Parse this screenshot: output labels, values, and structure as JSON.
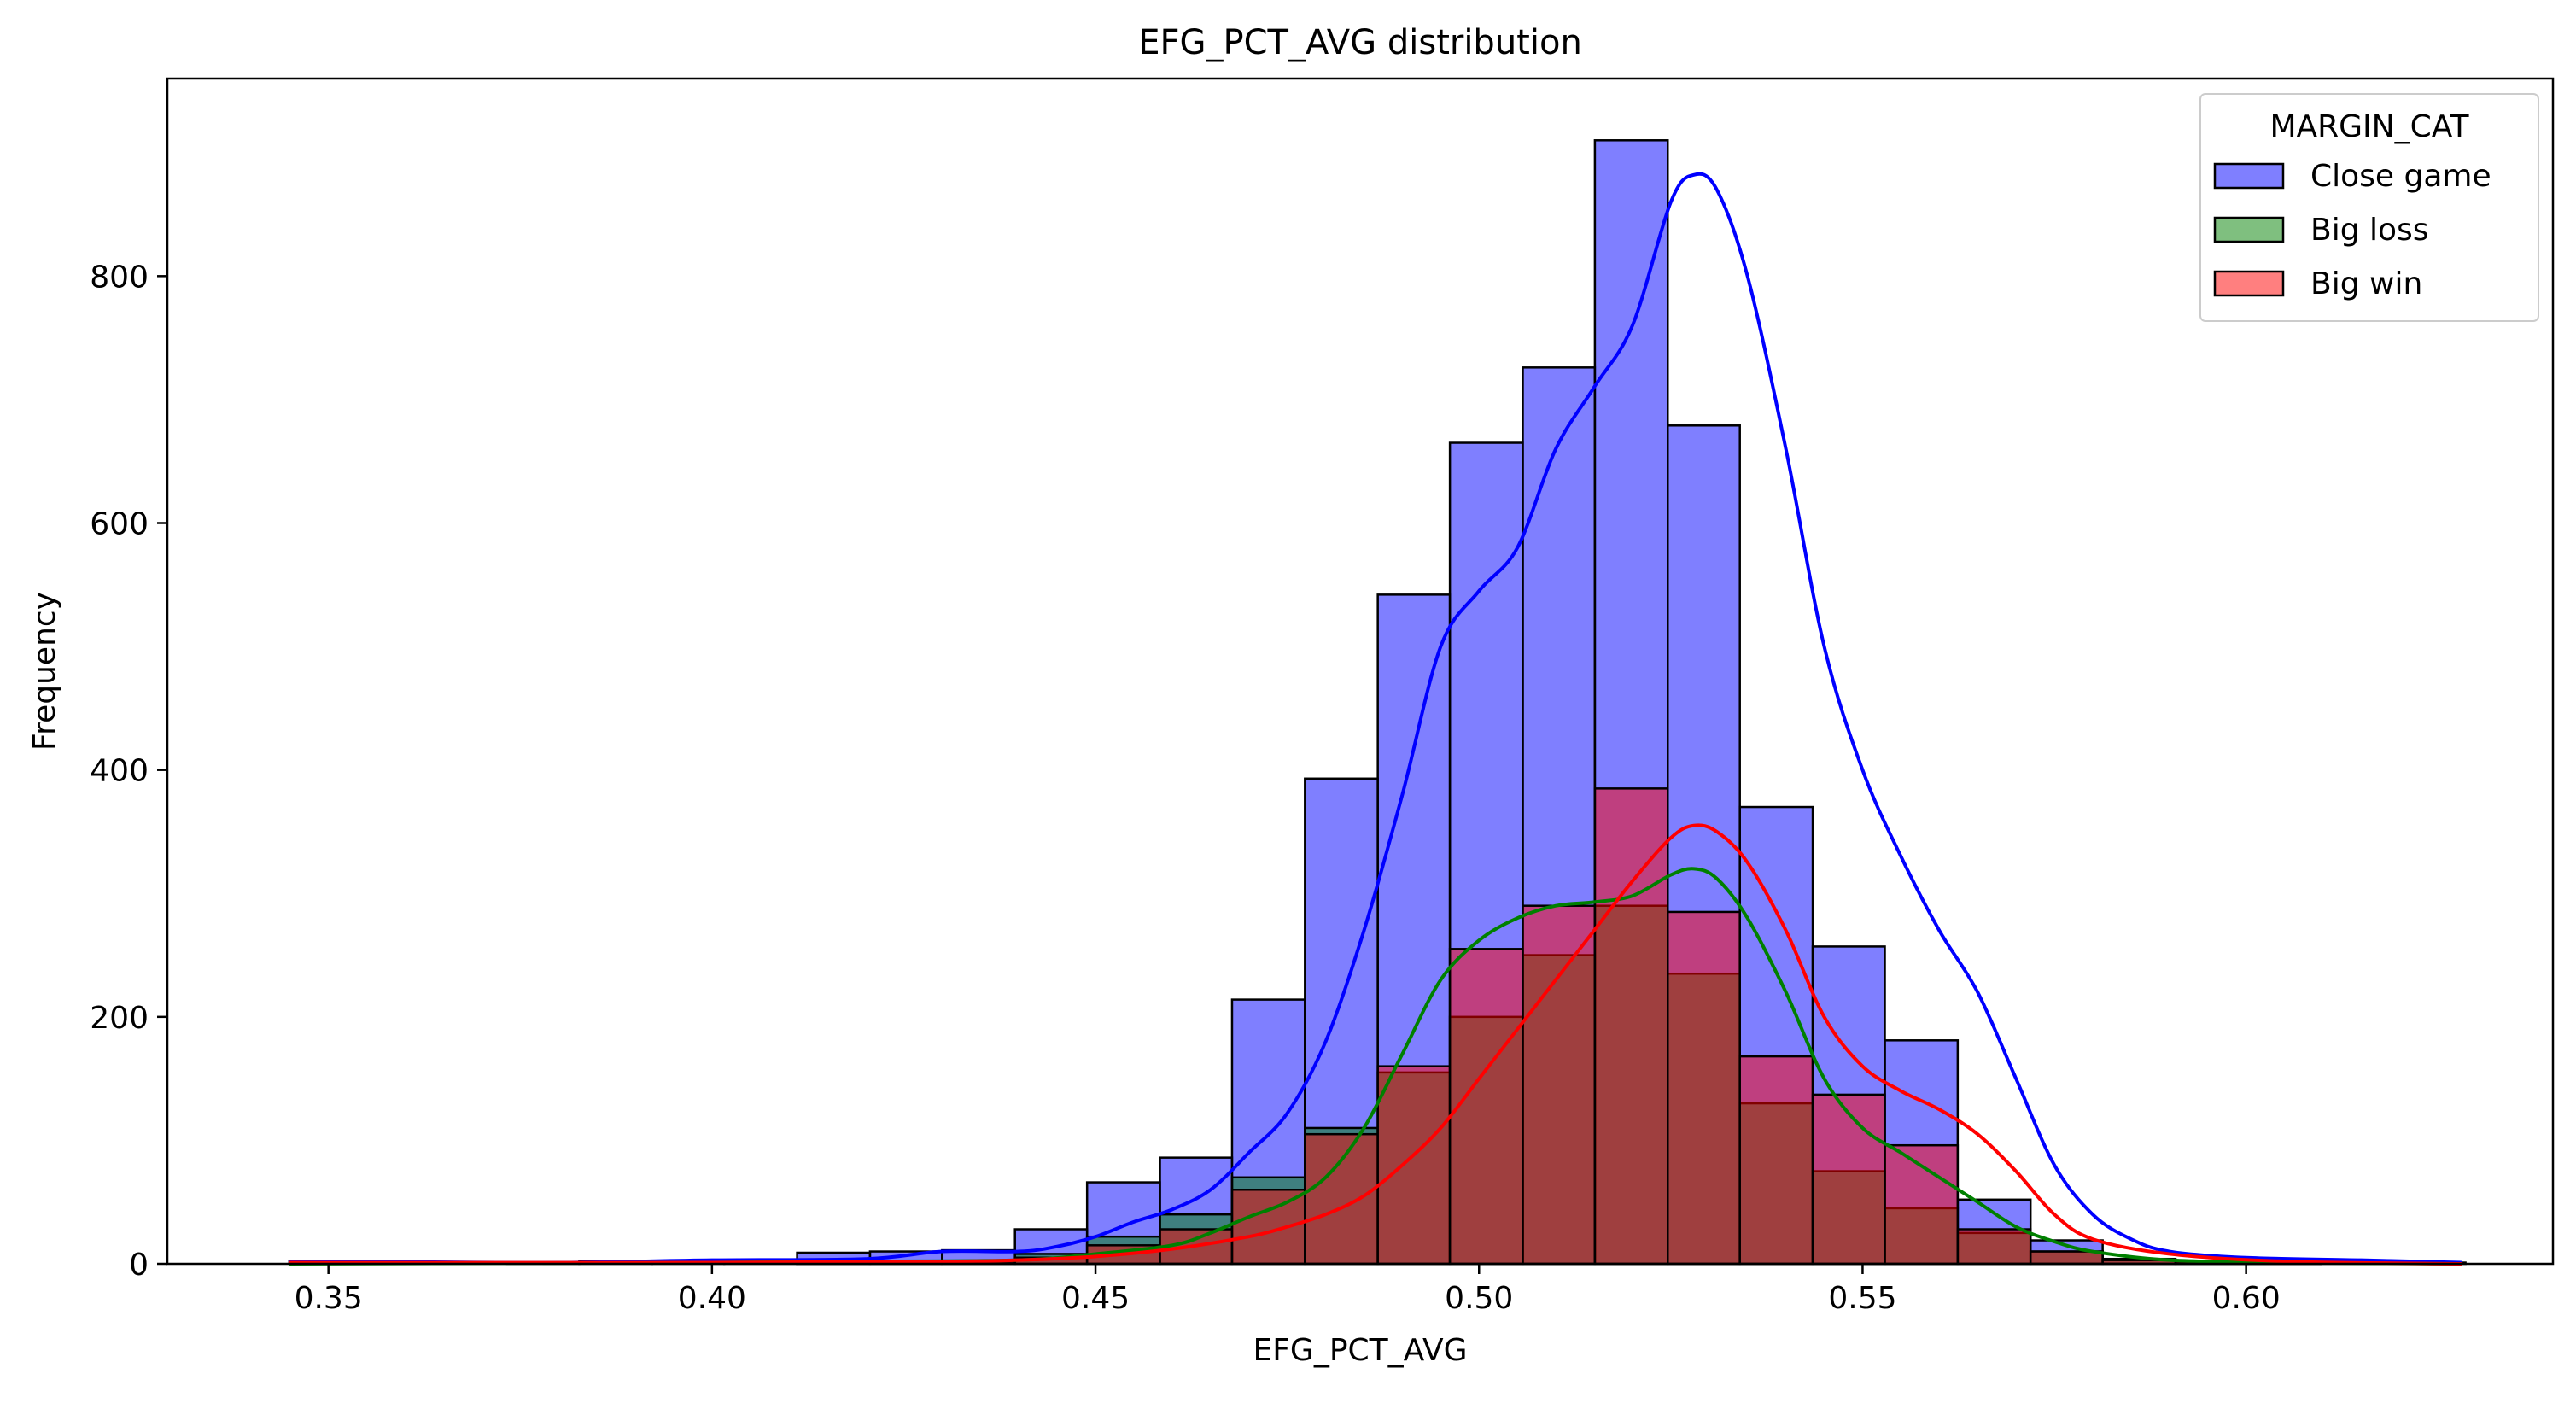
{
  "chart_data": {
    "type": "histogram",
    "title": "EFG_PCT_AVG distribution",
    "xlabel": "EFG_PCT_AVG",
    "ylabel": "Frequency",
    "xlim": [
      0.329,
      0.64
    ],
    "ylim": [
      0,
      960
    ],
    "x_ticks": [
      0.35,
      0.4,
      0.45,
      0.5,
      0.55,
      0.6
    ],
    "x_tick_labels": [
      "0.35",
      "0.40",
      "0.45",
      "0.50",
      "0.55",
      "0.60"
    ],
    "y_ticks": [
      0,
      200,
      400,
      600,
      800
    ],
    "y_tick_labels": [
      "0",
      "200",
      "400",
      "600",
      "800"
    ],
    "grid": false,
    "legend": {
      "title": "MARGIN_CAT",
      "placement": "top-right"
    },
    "bin_edges": [
      0.3449,
      0.3544,
      0.3638,
      0.3733,
      0.3827,
      0.3922,
      0.4016,
      0.4111,
      0.4206,
      0.43,
      0.4395,
      0.4489,
      0.4584,
      0.4678,
      0.4773,
      0.4868,
      0.4962,
      0.5057,
      0.5151,
      0.5246,
      0.534,
      0.5435,
      0.5529,
      0.5624,
      0.5719,
      0.5813,
      0.5908,
      0.6002,
      0.6097,
      0.6191,
      0.6286
    ],
    "series": [
      {
        "name": "Close game",
        "color": "#0000ff",
        "values": [
          2,
          1,
          0,
          1,
          2,
          2,
          3,
          9,
          10,
          11,
          28,
          66,
          86,
          214,
          393,
          542,
          665,
          726,
          910,
          679,
          370,
          257,
          181,
          52,
          19,
          3,
          2,
          1,
          1,
          1
        ],
        "kde": [
          [
            0.345,
            2
          ],
          [
            0.36,
            1.5
          ],
          [
            0.38,
            1
          ],
          [
            0.4,
            3
          ],
          [
            0.42,
            4
          ],
          [
            0.43,
            10
          ],
          [
            0.44,
            10
          ],
          [
            0.445,
            14
          ],
          [
            0.45,
            22
          ],
          [
            0.455,
            34
          ],
          [
            0.46,
            44
          ],
          [
            0.465,
            60
          ],
          [
            0.47,
            90
          ],
          [
            0.475,
            122
          ],
          [
            0.48,
            180
          ],
          [
            0.485,
            270
          ],
          [
            0.49,
            380
          ],
          [
            0.495,
            500
          ],
          [
            0.5,
            545
          ],
          [
            0.505,
            580
          ],
          [
            0.51,
            660
          ],
          [
            0.515,
            710
          ],
          [
            0.52,
            760
          ],
          [
            0.525,
            860
          ],
          [
            0.528,
            882
          ],
          [
            0.531,
            870
          ],
          [
            0.535,
            800
          ],
          [
            0.54,
            660
          ],
          [
            0.545,
            500
          ],
          [
            0.55,
            400
          ],
          [
            0.555,
            330
          ],
          [
            0.56,
            270
          ],
          [
            0.565,
            220
          ],
          [
            0.57,
            150
          ],
          [
            0.575,
            80
          ],
          [
            0.58,
            40
          ],
          [
            0.585,
            20
          ],
          [
            0.59,
            10
          ],
          [
            0.6,
            5
          ],
          [
            0.615,
            3
          ],
          [
            0.628,
            1
          ]
        ]
      },
      {
        "name": "Big loss",
        "color": "#008000",
        "values": [
          0,
          0,
          0,
          0,
          0,
          0,
          0,
          1,
          1,
          2,
          8,
          22,
          40,
          70,
          110,
          155,
          200,
          250,
          290,
          235,
          130,
          75,
          45,
          25,
          10,
          4,
          2,
          1,
          0,
          0
        ],
        "kde": [
          [
            0.345,
            0
          ],
          [
            0.4,
            1
          ],
          [
            0.42,
            2
          ],
          [
            0.44,
            3
          ],
          [
            0.45,
            8
          ],
          [
            0.46,
            15
          ],
          [
            0.465,
            25
          ],
          [
            0.47,
            38
          ],
          [
            0.475,
            50
          ],
          [
            0.48,
            70
          ],
          [
            0.485,
            110
          ],
          [
            0.49,
            170
          ],
          [
            0.495,
            230
          ],
          [
            0.5,
            262
          ],
          [
            0.505,
            280
          ],
          [
            0.51,
            290
          ],
          [
            0.515,
            293
          ],
          [
            0.52,
            298
          ],
          [
            0.525,
            315
          ],
          [
            0.528,
            320
          ],
          [
            0.531,
            312
          ],
          [
            0.535,
            280
          ],
          [
            0.54,
            220
          ],
          [
            0.545,
            150
          ],
          [
            0.55,
            110
          ],
          [
            0.555,
            90
          ],
          [
            0.56,
            70
          ],
          [
            0.565,
            50
          ],
          [
            0.57,
            30
          ],
          [
            0.575,
            18
          ],
          [
            0.58,
            10
          ],
          [
            0.59,
            3
          ],
          [
            0.605,
            1
          ],
          [
            0.628,
            0
          ]
        ]
      },
      {
        "name": "Big win",
        "color": "#ff0000",
        "values": [
          0,
          0,
          0,
          0,
          0,
          0,
          0,
          1,
          1,
          2,
          5,
          15,
          28,
          60,
          105,
          160,
          255,
          290,
          385,
          285,
          168,
          137,
          96,
          28,
          10,
          3,
          2,
          1,
          0,
          0
        ],
        "kde": [
          [
            0.345,
            1
          ],
          [
            0.4,
            1
          ],
          [
            0.43,
            2
          ],
          [
            0.44,
            3
          ],
          [
            0.45,
            6
          ],
          [
            0.46,
            12
          ],
          [
            0.47,
            22
          ],
          [
            0.475,
            30
          ],
          [
            0.48,
            40
          ],
          [
            0.485,
            55
          ],
          [
            0.49,
            80
          ],
          [
            0.495,
            110
          ],
          [
            0.5,
            150
          ],
          [
            0.505,
            190
          ],
          [
            0.51,
            230
          ],
          [
            0.515,
            270
          ],
          [
            0.52,
            310
          ],
          [
            0.525,
            345
          ],
          [
            0.528,
            355
          ],
          [
            0.531,
            350
          ],
          [
            0.535,
            325
          ],
          [
            0.54,
            270
          ],
          [
            0.545,
            200
          ],
          [
            0.55,
            160
          ],
          [
            0.555,
            140
          ],
          [
            0.56,
            125
          ],
          [
            0.565,
            105
          ],
          [
            0.57,
            75
          ],
          [
            0.575,
            40
          ],
          [
            0.58,
            20
          ],
          [
            0.59,
            8
          ],
          [
            0.605,
            2
          ],
          [
            0.628,
            0
          ]
        ]
      }
    ]
  }
}
